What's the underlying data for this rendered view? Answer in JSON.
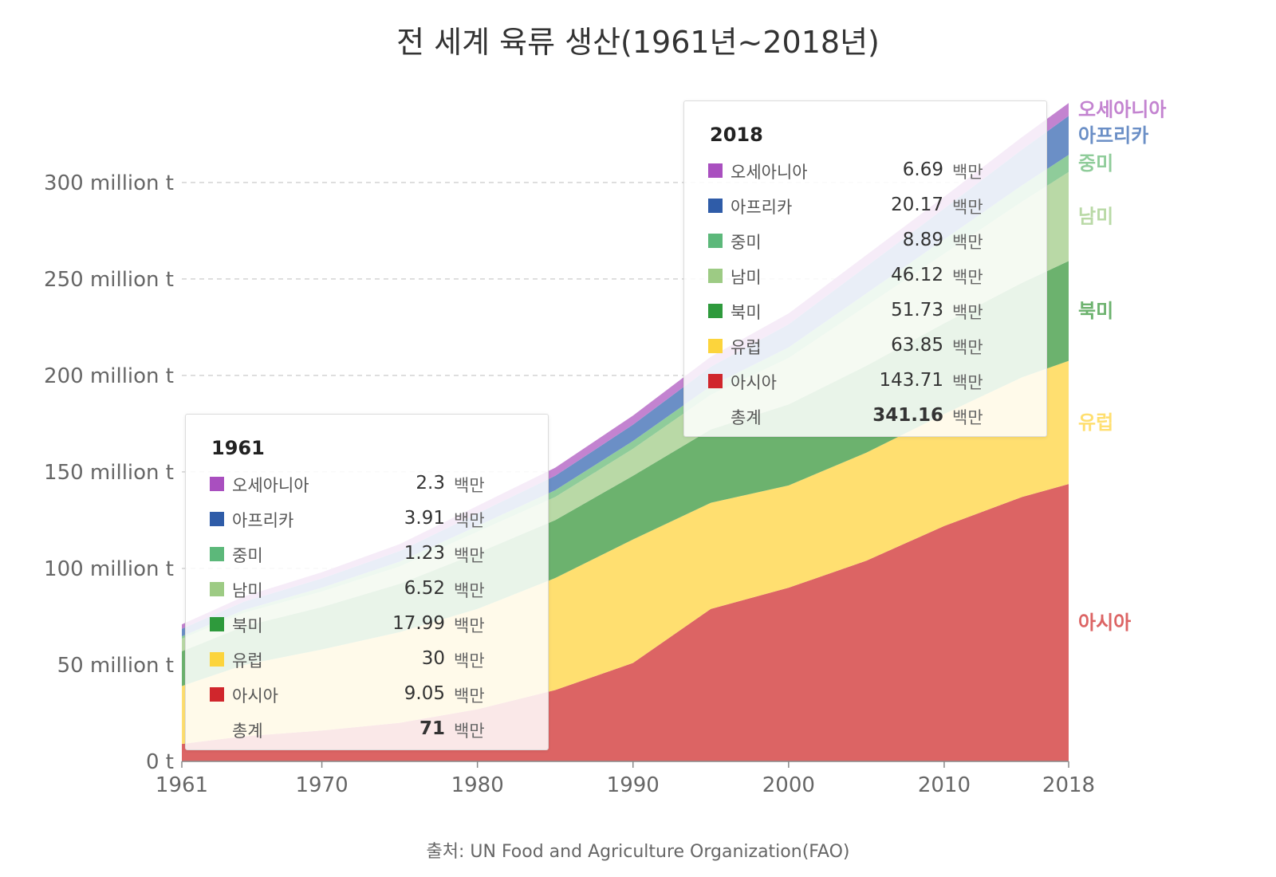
{
  "chart_data": {
    "type": "area",
    "stacked": true,
    "title": "전 세계 육류 생산(1961년~2018년)",
    "source": "출처: UN Food and Agriculture Organization(FAO)",
    "x_ticks": [
      1961,
      1970,
      1980,
      1990,
      2000,
      2010,
      2018
    ],
    "y_ticks": [
      {
        "value": 0,
        "label": "0 t"
      },
      {
        "value": 50,
        "label": "50 million t"
      },
      {
        "value": 100,
        "label": "100 million t"
      },
      {
        "value": 150,
        "label": "150 million t"
      },
      {
        "value": 200,
        "label": "200 million t"
      },
      {
        "value": 250,
        "label": "250 million t"
      },
      {
        "value": 300,
        "label": "300 million t"
      }
    ],
    "ylim": [
      0,
      340
    ],
    "xlim": [
      1961,
      2018
    ],
    "unit": "million t",
    "x": [
      1961,
      1965,
      1970,
      1975,
      1980,
      1985,
      1990,
      1995,
      2000,
      2005,
      2010,
      2015,
      2018
    ],
    "series": [
      {
        "name": "아시아",
        "color": "#dc6464",
        "values": [
          9.05,
          13,
          16,
          20,
          27,
          37,
          51,
          79,
          90,
          104,
          122,
          137,
          143.71
        ]
      },
      {
        "name": "유럽",
        "color": "#ffdf70",
        "values": [
          30,
          37,
          42,
          47,
          52,
          58,
          64,
          55,
          53,
          56,
          58,
          62,
          63.85
        ]
      },
      {
        "name": "북미",
        "color": "#6cb26e",
        "values": [
          17.99,
          20,
          22,
          25,
          29,
          30,
          33,
          38,
          42,
          45,
          47,
          49,
          51.73
        ]
      },
      {
        "name": "남미",
        "color": "#b9d9a6",
        "values": [
          6.52,
          7,
          8,
          9,
          11,
          12,
          14,
          18,
          24,
          31,
          36,
          42,
          46.12
        ]
      },
      {
        "name": "중미",
        "color": "#8fcc9a",
        "values": [
          1.23,
          1.5,
          2,
          2.5,
          3,
          3.5,
          4,
          4.5,
          5.5,
          6.5,
          7.5,
          8.5,
          8.89
        ]
      },
      {
        "name": "아프리카",
        "color": "#6b8fc6",
        "values": [
          3.91,
          4.3,
          4.8,
          5.5,
          6.5,
          7.5,
          8.5,
          10,
          12,
          14,
          16,
          18.5,
          20.17
        ]
      },
      {
        "name": "오세아니아",
        "color": "#c383d0",
        "values": [
          2.3,
          2.7,
          3.2,
          3.6,
          3.9,
          4.2,
          4.7,
          5.2,
          5.6,
          5.9,
          6.1,
          6.5,
          6.69
        ]
      }
    ]
  },
  "tooltips": [
    {
      "year": "1961",
      "rows": [
        {
          "name": "오세아니아",
          "value": "2.3",
          "unit": "백만",
          "color": "#a94fbf"
        },
        {
          "name": "아프리카",
          "value": "3.91",
          "unit": "백만",
          "color": "#2f5ca8"
        },
        {
          "name": "중미",
          "value": "1.23",
          "unit": "백만",
          "color": "#5cb87a"
        },
        {
          "name": "남미",
          "value": "6.52",
          "unit": "백만",
          "color": "#9dcb84"
        },
        {
          "name": "북미",
          "value": "17.99",
          "unit": "백만",
          "color": "#2e9a3c"
        },
        {
          "name": "유럽",
          "value": "30",
          "unit": "백만",
          "color": "#fcd43c"
        },
        {
          "name": "아시아",
          "value": "9.05",
          "unit": "백만",
          "color": "#d0262c"
        }
      ],
      "total": {
        "name": "총계",
        "value": "71",
        "unit": "백만"
      }
    },
    {
      "year": "2018",
      "rows": [
        {
          "name": "오세아니아",
          "value": "6.69",
          "unit": "백만",
          "color": "#a94fbf"
        },
        {
          "name": "아프리카",
          "value": "20.17",
          "unit": "백만",
          "color": "#2f5ca8"
        },
        {
          "name": "중미",
          "value": "8.89",
          "unit": "백만",
          "color": "#5cb87a"
        },
        {
          "name": "남미",
          "value": "46.12",
          "unit": "백만",
          "color": "#9dcb84"
        },
        {
          "name": "북미",
          "value": "51.73",
          "unit": "백만",
          "color": "#2e9a3c"
        },
        {
          "name": "유럽",
          "value": "63.85",
          "unit": "백만",
          "color": "#fcd43c"
        },
        {
          "name": "아시아",
          "value": "143.71",
          "unit": "백만",
          "color": "#d0262c"
        }
      ],
      "total": {
        "name": "총계",
        "value": "341.16",
        "unit": "백만"
      }
    }
  ]
}
